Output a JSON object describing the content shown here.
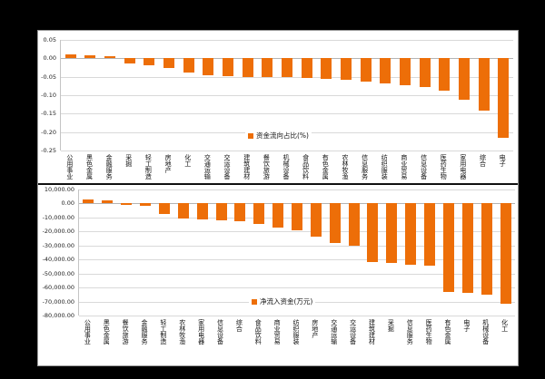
{
  "colors": {
    "bar": "#ED6E08",
    "page_background": "#000000",
    "chart_background": "#FFFFFF",
    "gridline": "#D9D9D9"
  },
  "chart_data": [
    {
      "type": "bar",
      "name": "capital-flow-ratio",
      "legend": "资金流向占比(%)",
      "legend_position": "bottom-center-inside",
      "grid": true,
      "y_max": 0.05,
      "y_min": -0.25,
      "y_ticks": [
        "0.05",
        "0.00",
        "-0.05",
        "-0.10",
        "-0.15",
        "-0.20",
        "-0.25"
      ],
      "categories": [
        "公用事业",
        "黑色金属",
        "金融服务",
        "采掘",
        "轻工制造",
        "房地产",
        "化工",
        "交通运输",
        "交运设备",
        "建筑建材",
        "餐饮旅游",
        "机械设备",
        "食品饮料",
        "有色金属",
        "农林牧渔",
        "信息服务",
        "纺织服装",
        "商业贸易",
        "信息设备",
        "医药生物",
        "家用电器",
        "综合",
        "电子"
      ],
      "values": [
        0.01,
        0.007,
        0.005,
        -0.013,
        -0.02,
        -0.027,
        -0.038,
        -0.047,
        -0.048,
        -0.05,
        -0.051,
        -0.052,
        -0.054,
        -0.056,
        -0.058,
        -0.062,
        -0.068,
        -0.073,
        -0.078,
        -0.088,
        -0.112,
        -0.143,
        -0.215
      ]
    },
    {
      "type": "bar",
      "name": "net-inflow",
      "legend": "净流入资金(万元)",
      "legend_position": "bottom-center-inside",
      "grid": true,
      "y_max": 10000,
      "y_min": -80000,
      "y_ticks": [
        "10,000.00",
        "0.00",
        "-10,000.00",
        "-20,000.00",
        "-30,000.00",
        "-40,000.00",
        "-50,000.00",
        "-60,000.00",
        "-70,000.00",
        "-80,000.00"
      ],
      "categories": [
        "公用事业",
        "黑色金属",
        "餐饮旅游",
        "金融服务",
        "轻工制造",
        "农林牧渔",
        "家用电器",
        "信息设备",
        "综合",
        "食品饮料",
        "商业贸易",
        "纺织服装",
        "房地产",
        "交通运输",
        "交运设备",
        "建筑建材",
        "采掘",
        "信息服务",
        "医药生物",
        "有色金属",
        "电子",
        "机械设备",
        "化工"
      ],
      "values": [
        2600,
        2200,
        -800,
        -1500,
        -7300,
        -10800,
        -11400,
        -11900,
        -12700,
        -14700,
        -17300,
        -19000,
        -23800,
        -28500,
        -30200,
        -41500,
        -42500,
        -43800,
        -44300,
        -63300,
        -64100,
        -65200,
        -71900
      ]
    }
  ]
}
